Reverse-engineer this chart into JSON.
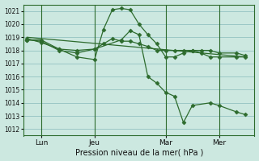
{
  "background_color": "#cce8e0",
  "plot_bg_color": "#cce8e0",
  "grid_color": "#88bbbb",
  "line_color": "#2d6b2d",
  "border_color": "#2d6b2d",
  "xlabel": "Pression niveau de la mer( hPa )",
  "ylim": [
    1011.5,
    1021.5
  ],
  "yticks": [
    1012,
    1013,
    1014,
    1015,
    1016,
    1017,
    1018,
    1019,
    1020,
    1021
  ],
  "ytick_fontsize": 5.5,
  "xtick_fontsize": 6.5,
  "xlabel_fontsize": 7,
  "xtick_labels": [
    "Lun",
    "Jeu",
    "Mar",
    "Mer"
  ],
  "xtick_positions": [
    1,
    4,
    8,
    11
  ],
  "vlines": [
    1,
    4,
    8,
    11
  ],
  "xlim": [
    0,
    13
  ],
  "series_peak": {
    "x": [
      0.2,
      1.0,
      2.0,
      3.0,
      4.0,
      4.5,
      5.0,
      5.5,
      6.0,
      6.5,
      7.0,
      7.5,
      8.0,
      8.5,
      9.0,
      9.5,
      10.0,
      10.5,
      11.0,
      12.0,
      12.5
    ],
    "y": [
      1018.8,
      1018.8,
      1018.1,
      1017.5,
      1017.3,
      1019.6,
      1021.1,
      1021.2,
      1021.1,
      1020.0,
      1019.2,
      1018.5,
      1017.5,
      1017.5,
      1017.8,
      1018.0,
      1017.8,
      1017.5,
      1017.5,
      1017.5,
      1017.5
    ]
  },
  "series_drop": {
    "x": [
      0.2,
      1.0,
      2.0,
      3.0,
      4.0,
      5.5,
      6.0,
      6.5,
      7.0,
      7.5,
      8.0,
      8.5,
      9.0,
      9.5,
      10.5,
      11.0,
      12.0,
      12.5
    ],
    "y": [
      1018.8,
      1018.7,
      1018.0,
      1017.8,
      1018.1,
      1018.8,
      1019.5,
      1019.2,
      1016.0,
      1015.5,
      1014.8,
      1014.5,
      1012.5,
      1013.8,
      1014.0,
      1013.8,
      1013.3,
      1013.1
    ]
  },
  "series_flat": {
    "x": [
      0.2,
      1.0,
      2.0,
      3.0,
      4.0,
      4.5,
      5.0,
      5.5,
      6.0,
      6.5,
      7.0,
      7.5,
      8.0,
      8.5,
      9.0,
      9.5,
      10.0,
      10.5,
      11.0,
      12.0,
      12.5
    ],
    "y": [
      1018.9,
      1018.6,
      1018.1,
      1018.0,
      1018.1,
      1018.5,
      1018.9,
      1018.7,
      1018.7,
      1018.5,
      1018.3,
      1018.0,
      1018.0,
      1018.0,
      1018.0,
      1018.0,
      1018.0,
      1018.0,
      1017.8,
      1017.8,
      1017.6
    ]
  },
  "trend_line": {
    "x": [
      0.2,
      12.5
    ],
    "y": [
      1019.0,
      1017.5
    ]
  }
}
